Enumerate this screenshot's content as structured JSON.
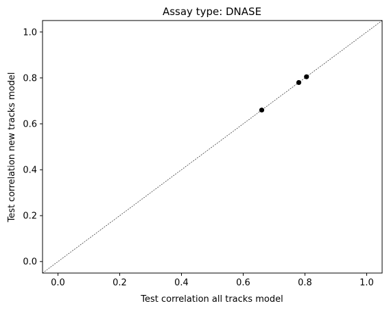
{
  "chart_data": {
    "type": "scatter",
    "title": "Assay type: DNASE",
    "xlabel": "Test correlation all tracks model",
    "ylabel": "Test correlation new tracks model",
    "xlim": [
      -0.05,
      1.05
    ],
    "ylim": [
      -0.05,
      1.05
    ],
    "xticks": [
      "0.0",
      "0.2",
      "0.4",
      "0.6",
      "0.8",
      "1.0"
    ],
    "yticks": [
      "0.0",
      "0.2",
      "0.4",
      "0.6",
      "0.8",
      "1.0"
    ],
    "grid": false,
    "reference_line": {
      "style": "dashed",
      "from": [
        -0.05,
        -0.05
      ],
      "to": [
        1.05,
        1.05
      ]
    },
    "marker_color": "#000000",
    "points": [
      {
        "x": 0.66,
        "y": 0.66
      },
      {
        "x": 0.78,
        "y": 0.78
      },
      {
        "x": 0.805,
        "y": 0.805
      }
    ]
  }
}
